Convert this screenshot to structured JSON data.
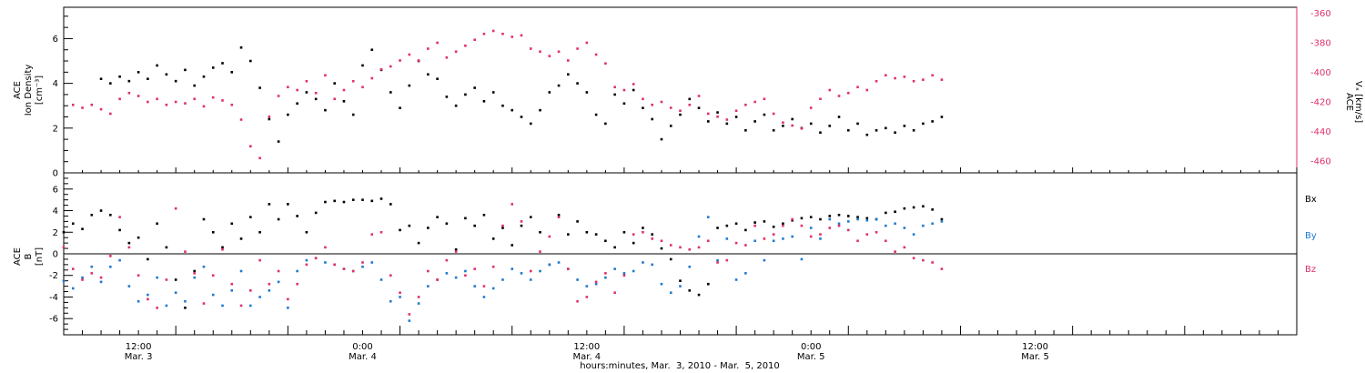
{
  "colors": {
    "black": "#000000",
    "pink": "#e0306a",
    "blue": "#1f7ad0"
  },
  "chart_data": [
    {
      "type": "scatter",
      "panel": "top",
      "y_left": {
        "label_line1": "ACE",
        "label_line2": "Ion Density",
        "label_unit": "[cm⁻³]",
        "lim": [
          0,
          7.4
        ],
        "ticks": [
          0,
          2,
          4,
          6
        ]
      },
      "y_right": {
        "label_line1": "ACE",
        "label_line2": "Vₓ [km/s]",
        "lim": [
          -468,
          -356
        ],
        "ticks": [
          -460,
          -440,
          -420,
          -400,
          -380,
          -360
        ]
      },
      "series": [
        {
          "name": "density",
          "color": "#000000",
          "axis": "left",
          "x": [
            2.0,
            2.5,
            3.0,
            3.5,
            4.0,
            4.5,
            5.0,
            5.5,
            6.0,
            6.5,
            7.0,
            7.5,
            8.0,
            8.5,
            9.0,
            9.5,
            10.0,
            10.5,
            11.0,
            11.5,
            12.0,
            12.5,
            13.0,
            13.5,
            14.0,
            14.5,
            15.0,
            15.5,
            16.0,
            16.5,
            17.0,
            17.5,
            18.0,
            18.5,
            19.0,
            19.5,
            20.0,
            20.5,
            21.0,
            21.5,
            22.0,
            22.5,
            23.0,
            23.5,
            24.0,
            24.5,
            25.0,
            25.5,
            26.0,
            26.5,
            27.0,
            27.5,
            28.0,
            28.5,
            29.0,
            29.5,
            30.0,
            30.5,
            31.0,
            31.5,
            32.0,
            32.5,
            33.0,
            33.5,
            34.0,
            34.5,
            35.0,
            35.5,
            36.0,
            36.5,
            37.0,
            37.5,
            38.0,
            38.5,
            39.0,
            39.5,
            40.0,
            40.5,
            41.0,
            41.5,
            42.0,
            42.5,
            43.0,
            43.5,
            44.0,
            44.5,
            45.0,
            45.5,
            46.0,
            46.5,
            47.0
          ],
          "y": [
            4.2,
            4.0,
            4.3,
            4.1,
            4.5,
            4.2,
            4.8,
            4.4,
            4.1,
            4.6,
            3.9,
            4.3,
            4.7,
            4.9,
            4.5,
            5.6,
            5.0,
            3.8,
            2.4,
            1.4,
            2.6,
            3.1,
            3.6,
            3.3,
            2.8,
            4.0,
            3.2,
            2.6,
            4.8,
            5.5,
            4.6,
            3.6,
            2.9,
            3.9,
            5.0,
            4.4,
            4.2,
            3.4,
            3.0,
            3.5,
            3.8,
            3.2,
            3.6,
            3.0,
            2.8,
            2.5,
            2.2,
            2.8,
            3.6,
            3.9,
            4.4,
            4.0,
            3.6,
            2.6,
            2.2,
            3.5,
            3.1,
            3.7,
            2.9,
            2.4,
            1.5,
            2.1,
            2.6,
            3.3,
            2.9,
            2.3,
            2.7,
            2.2,
            2.5,
            1.9,
            2.3,
            2.6,
            1.9,
            2.1,
            2.4,
            2.0,
            2.2,
            1.8,
            2.1,
            2.5,
            1.9,
            2.2,
            1.7,
            1.9,
            2.0,
            1.8,
            2.1,
            1.9,
            2.2,
            2.3,
            2.5
          ]
        },
        {
          "name": "Vx",
          "color": "#e0306a",
          "axis": "right",
          "x": [
            0.5,
            1.0,
            1.5,
            2.0,
            2.5,
            3.0,
            3.5,
            4.0,
            4.5,
            5.0,
            5.5,
            6.0,
            6.5,
            7.0,
            7.5,
            8.0,
            8.5,
            9.0,
            9.5,
            10.0,
            10.5,
            11.0,
            11.5,
            12.0,
            12.5,
            13.0,
            13.5,
            14.0,
            14.5,
            15.0,
            15.5,
            16.0,
            16.5,
            17.0,
            17.5,
            18.0,
            18.5,
            19.0,
            19.5,
            20.0,
            20.5,
            21.0,
            21.5,
            22.0,
            22.5,
            23.0,
            23.5,
            24.0,
            24.5,
            25.0,
            25.5,
            26.0,
            26.5,
            27.0,
            27.5,
            28.0,
            28.5,
            29.0,
            29.5,
            30.0,
            30.5,
            31.0,
            31.5,
            32.0,
            32.5,
            33.0,
            33.5,
            34.0,
            34.5,
            35.0,
            35.5,
            36.0,
            36.5,
            37.0,
            37.5,
            38.0,
            38.5,
            39.0,
            39.5,
            40.0,
            40.5,
            41.0,
            41.5,
            42.0,
            42.5,
            43.0,
            43.5,
            44.0,
            44.5,
            45.0,
            45.5,
            46.0,
            46.5,
            47.0
          ],
          "y": [
            -422,
            -424,
            -422,
            -425,
            -428,
            -418,
            -414,
            -416,
            -420,
            -418,
            -422,
            -420,
            -421,
            -418,
            -423,
            -417,
            -419,
            -422,
            -432,
            -450,
            -458,
            -430,
            -416,
            -410,
            -412,
            -406,
            -414,
            -402,
            -418,
            -412,
            -406,
            -410,
            -404,
            -398,
            -396,
            -392,
            -388,
            -392,
            -384,
            -380,
            -390,
            -386,
            -382,
            -378,
            -374,
            -372,
            -374,
            -376,
            -375,
            -384,
            -386,
            -389,
            -386,
            -392,
            -384,
            -380,
            -388,
            -394,
            -410,
            -412,
            -408,
            -418,
            -422,
            -420,
            -424,
            -426,
            -422,
            -416,
            -428,
            -430,
            -432,
            -426,
            -422,
            -420,
            -418,
            -428,
            -434,
            -436,
            -438,
            -424,
            -418,
            -412,
            -416,
            -414,
            -410,
            -412,
            -406,
            -402,
            -404,
            -403,
            -406,
            -405,
            -402,
            -405
          ]
        }
      ]
    },
    {
      "type": "scatter",
      "panel": "bottom",
      "y_left": {
        "label_line1": "ACE",
        "label_line2": "B",
        "label_unit": "[nT]",
        "lim": [
          -7.5,
          7.5
        ],
        "ticks": [
          -6,
          -4,
          -2,
          0,
          2,
          4,
          6
        ]
      },
      "zero_line": true,
      "x_axis": {
        "lim": [
          0,
          66
        ],
        "ticks": [
          {
            "x": 4,
            "line1": "12:00",
            "line2": "Mar. 3"
          },
          {
            "x": 16,
            "line1": "0:00",
            "line2": "Mar. 4"
          },
          {
            "x": 28,
            "line1": "12:00",
            "line2": "Mar. 4"
          },
          {
            "x": 40,
            "line1": "0:00",
            "line2": "Mar. 5"
          },
          {
            "x": 52,
            "line1": "12:00",
            "line2": "Mar. 5"
          }
        ],
        "label": "hours:minutes, Mar.  3, 2010 - Mar.  5, 2010"
      },
      "series": [
        {
          "name": "Bx",
          "color": "#000000",
          "x": [
            0.0,
            0.5,
            1.0,
            1.5,
            2.0,
            2.5,
            3.0,
            3.5,
            4.0,
            4.5,
            5.0,
            5.5,
            6.0,
            6.5,
            7.0,
            7.5,
            8.0,
            8.5,
            9.0,
            9.5,
            10.0,
            10.5,
            11.0,
            11.5,
            12.0,
            12.5,
            13.0,
            13.5,
            14.0,
            14.5,
            15.0,
            15.5,
            16.0,
            16.5,
            17.0,
            17.5,
            18.0,
            18.5,
            19.0,
            19.5,
            20.0,
            20.5,
            21.0,
            21.5,
            22.0,
            22.5,
            23.0,
            23.5,
            24.0,
            24.5,
            25.0,
            25.5,
            26.0,
            26.5,
            27.0,
            27.5,
            28.0,
            28.5,
            29.0,
            29.5,
            30.0,
            30.5,
            31.0,
            31.5,
            32.0,
            32.5,
            33.0,
            33.5,
            34.0,
            34.5,
            35.0,
            35.5,
            36.0,
            36.5,
            37.0,
            37.5,
            38.0,
            38.5,
            39.0,
            39.5,
            40.0,
            40.5,
            41.0,
            41.5,
            42.0,
            42.5,
            43.0,
            43.5,
            44.0,
            44.5,
            45.0,
            45.5,
            46.0,
            46.5,
            47.0
          ],
          "y": [
            2.0,
            2.8,
            2.3,
            3.6,
            4.0,
            3.6,
            2.2,
            1.0,
            1.5,
            -0.5,
            2.8,
            0.6,
            -2.4,
            -5.0,
            -1.6,
            3.2,
            2.0,
            0.6,
            2.8,
            1.4,
            3.4,
            2.0,
            4.6,
            3.2,
            4.6,
            3.5,
            2.0,
            3.8,
            4.8,
            4.9,
            4.8,
            5.0,
            5.0,
            4.9,
            5.1,
            4.6,
            2.2,
            2.6,
            1.0,
            2.4,
            3.4,
            2.8,
            0.4,
            3.3,
            2.6,
            3.6,
            1.4,
            2.4,
            0.8,
            2.6,
            3.4,
            2.0,
            -1.0,
            3.6,
            1.8,
            3.0,
            2.0,
            1.8,
            1.2,
            0.6,
            2.0,
            1.0,
            2.4,
            1.8,
            0.5,
            -0.5,
            -2.5,
            -3.4,
            -3.8,
            -2.8,
            2.4,
            2.6,
            2.8,
            2.2,
            2.9,
            3.0,
            2.5,
            2.8,
            3.1,
            3.3,
            3.4,
            3.2,
            3.5,
            3.6,
            3.5,
            3.4,
            3.3,
            3.2,
            3.8,
            3.9,
            4.2,
            4.3,
            4.4,
            4.1,
            3.2
          ]
        },
        {
          "name": "By",
          "color": "#1f7ad0",
          "x": [
            0.0,
            0.5,
            1.0,
            1.5,
            2.0,
            2.5,
            3.0,
            3.5,
            4.0,
            4.5,
            5.0,
            5.5,
            6.0,
            6.5,
            7.0,
            7.5,
            8.0,
            8.5,
            9.0,
            9.5,
            10.0,
            10.5,
            11.0,
            11.5,
            12.0,
            12.5,
            13.0,
            13.5,
            14.0,
            14.5,
            15.0,
            15.5,
            16.0,
            16.5,
            17.0,
            17.5,
            18.0,
            18.5,
            19.0,
            19.5,
            20.0,
            20.5,
            21.0,
            21.5,
            22.0,
            22.5,
            23.0,
            23.5,
            24.0,
            24.5,
            25.0,
            25.5,
            26.0,
            26.5,
            27.0,
            27.5,
            28.0,
            28.5,
            29.0,
            29.5,
            30.0,
            30.5,
            31.0,
            31.5,
            32.0,
            32.5,
            33.0,
            33.5,
            34.0,
            34.5,
            35.0,
            35.5,
            36.0,
            36.5,
            37.0,
            37.5,
            38.0,
            38.5,
            39.0,
            39.5,
            40.0,
            40.5,
            41.0,
            41.5,
            42.0,
            42.5,
            43.0,
            43.5,
            44.0,
            44.5,
            45.0,
            45.5,
            46.0,
            46.5,
            47.0
          ],
          "y": [
            -2.5,
            -3.2,
            -2.2,
            -1.2,
            -2.6,
            -1.2,
            -0.6,
            -3.0,
            -4.4,
            -3.8,
            -2.2,
            -4.8,
            -3.6,
            -4.4,
            -2.2,
            -1.2,
            -3.8,
            -4.8,
            -3.4,
            -1.6,
            -4.8,
            -4.0,
            -3.4,
            -2.6,
            -5.0,
            -1.6,
            -0.6,
            -0.4,
            -0.8,
            -1.0,
            -1.4,
            -1.6,
            -1.2,
            -0.8,
            -2.4,
            -4.4,
            -4.0,
            -6.2,
            -4.6,
            -3.0,
            -2.4,
            -1.8,
            -2.2,
            -1.6,
            -3.0,
            -4.0,
            -3.2,
            -2.4,
            -1.4,
            -1.8,
            -2.4,
            -1.6,
            -1.0,
            -0.8,
            -1.4,
            -2.4,
            -3.0,
            -2.8,
            -2.2,
            -1.4,
            -1.8,
            -1.6,
            -0.8,
            -1.0,
            -2.8,
            -3.6,
            -3.0,
            -1.2,
            1.6,
            3.4,
            -0.6,
            1.4,
            -2.4,
            -1.8,
            1.2,
            -0.6,
            1.2,
            1.4,
            1.6,
            -0.5,
            2.4,
            1.4,
            3.2,
            2.8,
            3.0,
            3.2,
            3.1,
            3.2,
            2.6,
            2.8,
            2.4,
            1.8,
            2.6,
            2.8,
            3.0
          ]
        },
        {
          "name": "Bz",
          "color": "#e0306a",
          "x": [
            0.0,
            0.5,
            1.0,
            1.5,
            2.0,
            2.5,
            3.0,
            3.5,
            4.0,
            4.5,
            5.0,
            5.5,
            6.0,
            6.5,
            7.0,
            7.5,
            8.0,
            8.5,
            9.0,
            9.5,
            10.0,
            10.5,
            11.0,
            11.5,
            12.0,
            12.5,
            13.0,
            13.5,
            14.0,
            14.5,
            15.0,
            15.5,
            16.0,
            16.5,
            17.0,
            17.5,
            18.0,
            18.5,
            19.0,
            19.5,
            20.0,
            20.5,
            21.0,
            21.5,
            22.0,
            22.5,
            23.0,
            23.5,
            24.0,
            24.5,
            25.0,
            25.5,
            26.0,
            26.5,
            27.0,
            27.5,
            28.0,
            28.5,
            29.0,
            29.5,
            30.0,
            30.5,
            31.0,
            31.5,
            32.0,
            32.5,
            33.0,
            33.5,
            34.0,
            34.5,
            35.0,
            35.5,
            36.0,
            36.5,
            37.0,
            37.5,
            38.0,
            38.5,
            39.0,
            39.5,
            40.0,
            40.5,
            41.0,
            41.5,
            42.0,
            42.5,
            43.0,
            43.5,
            44.0,
            44.5,
            45.0,
            45.5,
            46.0,
            46.5,
            47.0
          ],
          "y": [
            0.6,
            -1.4,
            -2.4,
            -1.8,
            -2.2,
            -0.2,
            3.4,
            0.6,
            -2.0,
            -4.2,
            -5.0,
            -2.4,
            4.2,
            0.2,
            -1.8,
            -4.6,
            -2.0,
            0.4,
            -2.8,
            -4.8,
            -3.4,
            -0.6,
            -2.8,
            -1.6,
            -4.2,
            -2.8,
            -1.0,
            -0.4,
            0.6,
            -1.0,
            -1.4,
            -1.6,
            -0.8,
            1.8,
            2.0,
            -2.0,
            -3.6,
            -5.6,
            -4.0,
            -1.6,
            -2.4,
            -0.6,
            0.2,
            -2.0,
            -1.4,
            -3.0,
            -1.2,
            2.6,
            4.6,
            3.0,
            -1.6,
            0.2,
            1.6,
            3.4,
            -1.4,
            -4.4,
            -4.0,
            -2.6,
            -1.8,
            -3.6,
            -2.0,
            1.8,
            2.0,
            1.4,
            1.2,
            0.8,
            0.6,
            0.4,
            0.6,
            1.2,
            -0.8,
            -0.6,
            1.0,
            0.8,
            2.6,
            1.4,
            1.8,
            2.6,
            3.2,
            2.6,
            1.6,
            1.8,
            2.4,
            2.6,
            2.2,
            1.2,
            1.8,
            2.0,
            1.2,
            0.2,
            0.6,
            -0.4,
            -0.6,
            -0.8,
            -1.4
          ]
        }
      ]
    }
  ]
}
